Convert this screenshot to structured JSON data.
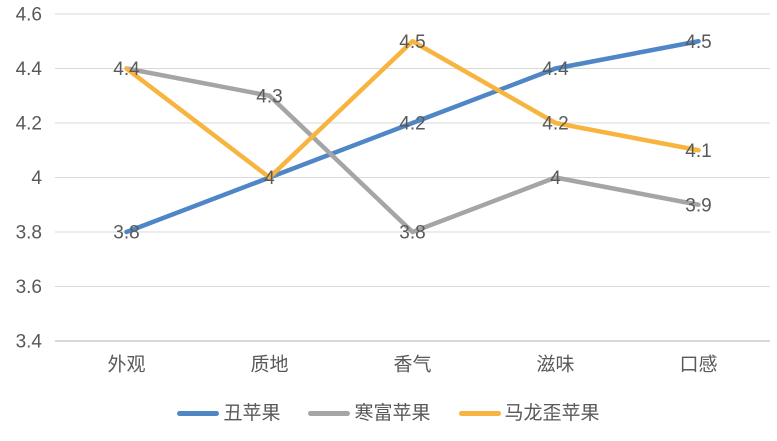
{
  "chart_data": {
    "type": "line",
    "title": "",
    "xlabel": "",
    "ylabel": "",
    "categories": [
      "外观",
      "质地",
      "香气",
      "滋味",
      "口感"
    ],
    "series": [
      {
        "name": "丑苹果",
        "color": "#4F86C6",
        "values": [
          3.8,
          4,
          4.2,
          4.4,
          4.5
        ]
      },
      {
        "name": "寒富苹果",
        "color": "#A5A5A5",
        "values": [
          4.4,
          4.3,
          3.8,
          4,
          3.9
        ]
      },
      {
        "name": "马龙歪苹果",
        "color": "#F7B43E",
        "values": [
          4.4,
          4,
          4.5,
          4.2,
          4.1
        ]
      }
    ],
    "ylim": [
      3.4,
      4.6
    ],
    "yticks": [
      3.4,
      3.6,
      3.8,
      4,
      4.2,
      4.4,
      4.6
    ],
    "ytick_labels": [
      "3.4",
      "3.6",
      "3.8",
      "4",
      "4.2",
      "4.4",
      "4.6"
    ],
    "grid": "horizontal",
    "data_labels": "centered-on-points",
    "legend_position": "bottom",
    "colors": {
      "text": "#595959",
      "gridline": "#D9D9D9",
      "axisline": "#C0C0C0",
      "background": "#FFFFFF"
    }
  }
}
